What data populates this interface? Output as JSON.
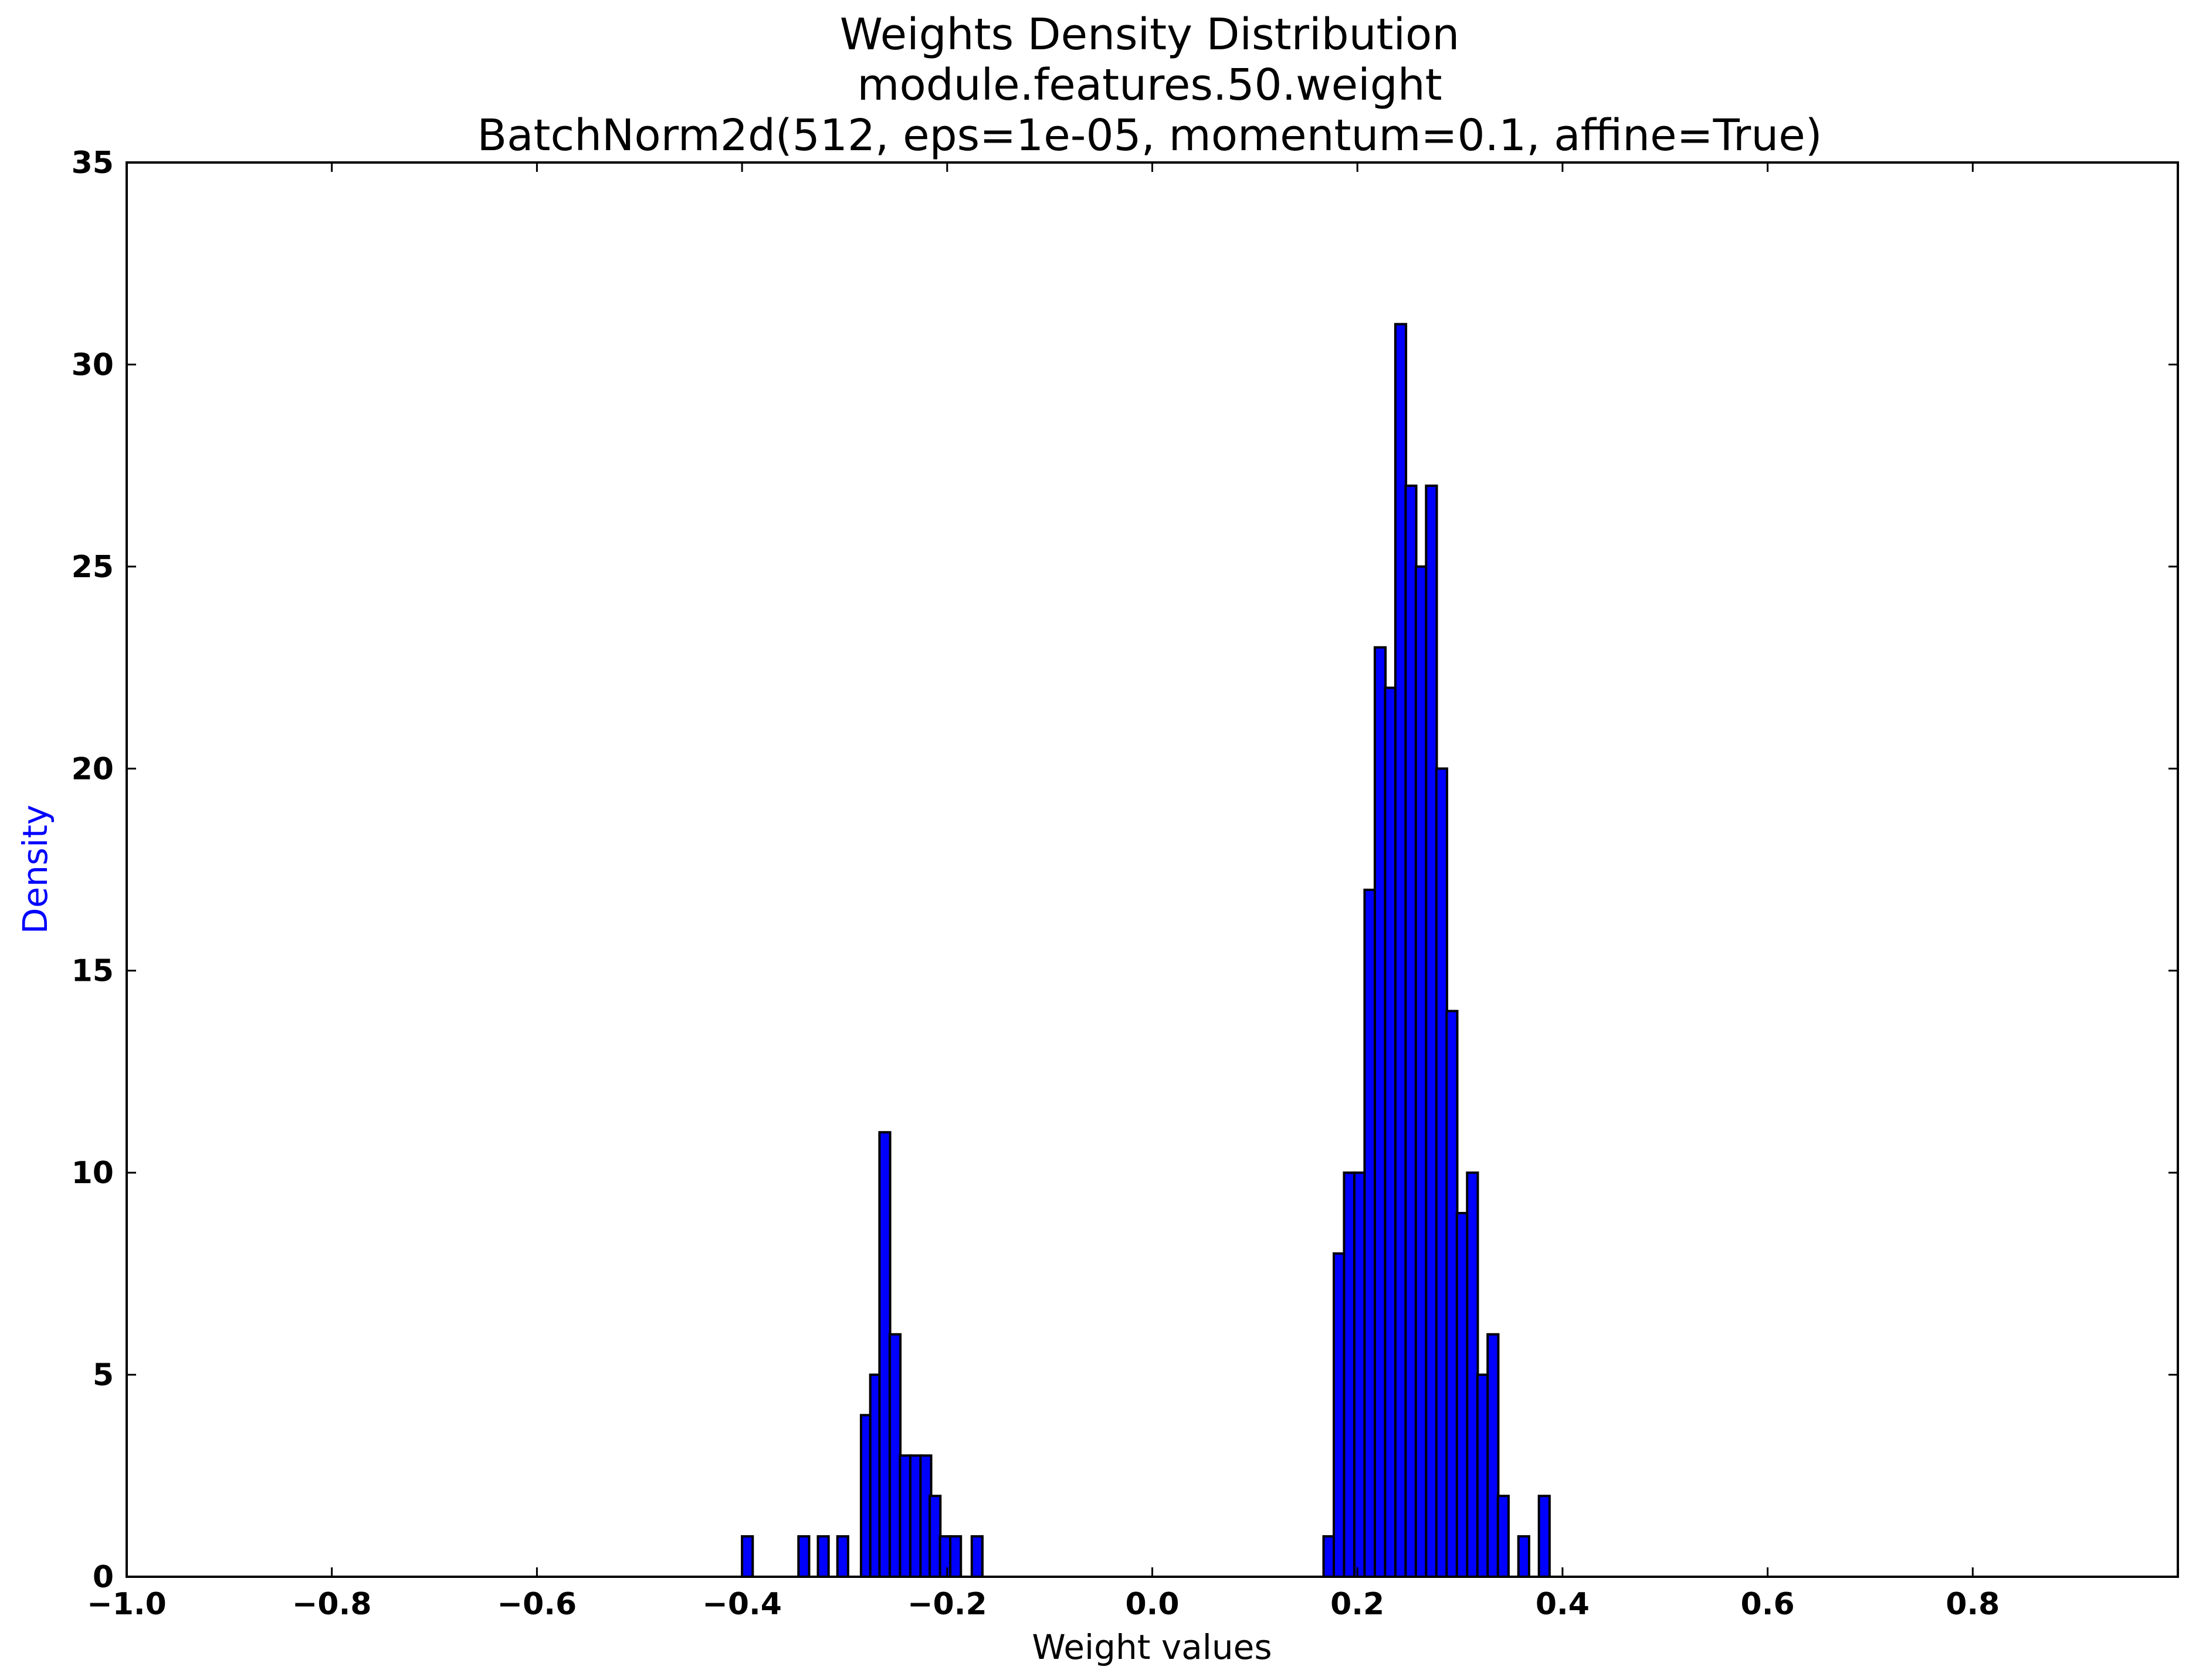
{
  "chart_data": {
    "type": "bar",
    "title": "Weights Density Distribution",
    "title_lines": [
      "Weights Density Distribution",
      "module.features.50.weight",
      "BatchNorm2d(512, eps=1e-05, momentum=0.1, affine=True)"
    ],
    "xlabel": "Weight values",
    "ylabel": "Density",
    "xlim": [
      -1.0,
      1.0
    ],
    "ylim": [
      0,
      35
    ],
    "grid": false,
    "bar_color": "#0000ff",
    "bin_width": 0.0104,
    "xticks": [
      {
        "value": -1.0,
        "label": "−1.0"
      },
      {
        "value": -0.8,
        "label": "−0.8"
      },
      {
        "value": -0.6,
        "label": "−0.6"
      },
      {
        "value": -0.4,
        "label": "−0.4"
      },
      {
        "value": -0.2,
        "label": "−0.2"
      },
      {
        "value": 0.0,
        "label": "0.0"
      },
      {
        "value": 0.2,
        "label": "0.2"
      },
      {
        "value": 0.4,
        "label": "0.4"
      },
      {
        "value": 0.6,
        "label": "0.6"
      },
      {
        "value": 0.8,
        "label": "0.8"
      }
    ],
    "yticks": [
      {
        "value": 0,
        "label": "0"
      },
      {
        "value": 5,
        "label": "5"
      },
      {
        "value": 10,
        "label": "10"
      },
      {
        "value": 15,
        "label": "15"
      },
      {
        "value": 20,
        "label": "20"
      },
      {
        "value": 25,
        "label": "25"
      },
      {
        "value": 30,
        "label": "30"
      },
      {
        "value": 35,
        "label": "35"
      }
    ],
    "bins": [
      {
        "x": -0.4,
        "value": 1
      },
      {
        "x": -0.345,
        "value": 1
      },
      {
        "x": -0.326,
        "value": 1
      },
      {
        "x": -0.307,
        "value": 1
      },
      {
        "x": -0.284,
        "value": 4
      },
      {
        "x": -0.275,
        "value": 5
      },
      {
        "x": -0.266,
        "value": 11
      },
      {
        "x": -0.256,
        "value": 6
      },
      {
        "x": -0.246,
        "value": 3
      },
      {
        "x": -0.236,
        "value": 3
      },
      {
        "x": -0.226,
        "value": 3
      },
      {
        "x": -0.217,
        "value": 2
      },
      {
        "x": -0.207,
        "value": 1
      },
      {
        "x": -0.197,
        "value": 1
      },
      {
        "x": -0.176,
        "value": 1
      },
      {
        "x": 0.167,
        "value": 1
      },
      {
        "x": 0.177,
        "value": 8
      },
      {
        "x": 0.187,
        "value": 10
      },
      {
        "x": 0.197,
        "value": 10
      },
      {
        "x": 0.207,
        "value": 17
      },
      {
        "x": 0.217,
        "value": 23
      },
      {
        "x": 0.227,
        "value": 22
      },
      {
        "x": 0.237,
        "value": 31
      },
      {
        "x": 0.247,
        "value": 27
      },
      {
        "x": 0.257,
        "value": 25
      },
      {
        "x": 0.267,
        "value": 27
      },
      {
        "x": 0.277,
        "value": 20
      },
      {
        "x": 0.287,
        "value": 14
      },
      {
        "x": 0.297,
        "value": 9
      },
      {
        "x": 0.307,
        "value": 10
      },
      {
        "x": 0.317,
        "value": 5
      },
      {
        "x": 0.327,
        "value": 6
      },
      {
        "x": 0.337,
        "value": 2
      },
      {
        "x": 0.357,
        "value": 1
      },
      {
        "x": 0.377,
        "value": 2
      }
    ]
  }
}
